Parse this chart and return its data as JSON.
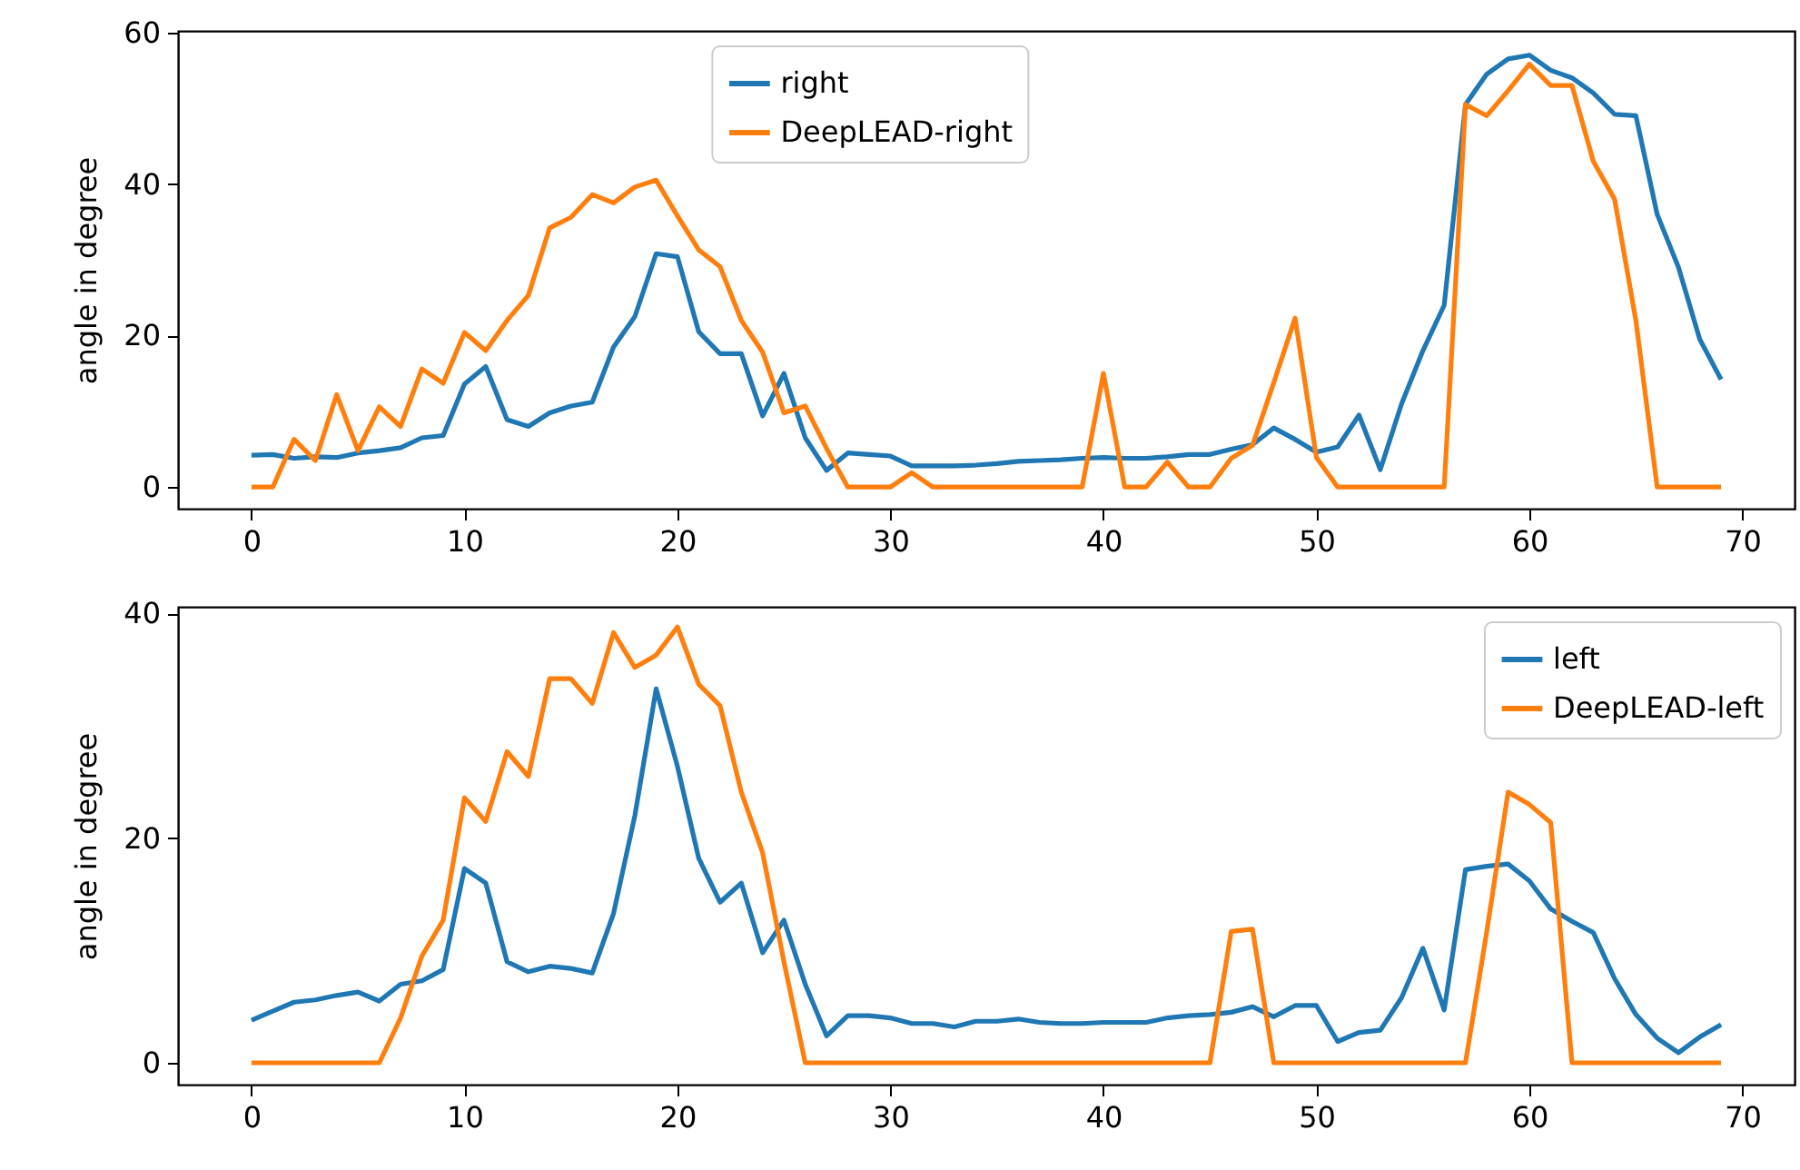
{
  "chart_data": [
    {
      "type": "line",
      "ylabel": "angle in degree",
      "legend": "top",
      "xlim": [
        -3.45,
        72.45
      ],
      "ylim": [
        -2.85,
        60.2
      ],
      "xticks": [
        0,
        10,
        20,
        30,
        40,
        50,
        60,
        70
      ],
      "yticks": [
        0,
        20,
        40,
        60
      ],
      "x": [
        0,
        1,
        2,
        3,
        4,
        5,
        6,
        7,
        8,
        9,
        10,
        11,
        12,
        13,
        14,
        15,
        16,
        17,
        18,
        19,
        20,
        21,
        22,
        23,
        24,
        25,
        26,
        27,
        28,
        29,
        30,
        31,
        32,
        33,
        34,
        35,
        36,
        37,
        38,
        39,
        40,
        41,
        42,
        43,
        44,
        45,
        46,
        47,
        48,
        49,
        50,
        51,
        52,
        53,
        54,
        55,
        56,
        57,
        58,
        59,
        60,
        61,
        62,
        63,
        64,
        65,
        66,
        67,
        68,
        69
      ],
      "series": [
        {
          "name": "right",
          "color": "#1f77b4",
          "values": [
            4.2,
            4.3,
            3.8,
            4.0,
            3.9,
            4.5,
            4.8,
            5.2,
            6.5,
            6.8,
            13.6,
            15.9,
            8.9,
            8.0,
            9.8,
            10.7,
            11.2,
            18.5,
            22.5,
            30.8,
            30.4,
            20.5,
            17.6,
            17.6,
            9.4,
            15.0,
            6.5,
            2.2,
            4.5,
            4.3,
            4.1,
            2.8,
            2.8,
            2.8,
            2.9,
            3.1,
            3.4,
            3.5,
            3.6,
            3.8,
            3.9,
            3.8,
            3.8,
            4.0,
            4.3,
            4.3,
            5.0,
            5.6,
            7.8,
            6.3,
            4.6,
            5.3,
            9.5,
            2.3,
            11.0,
            18.0,
            24.0,
            50.5,
            54.5,
            56.5,
            57.0,
            55.0,
            54.0,
            52.0,
            49.2,
            49.0,
            36.0,
            29.0,
            19.5,
            14.2
          ]
        },
        {
          "name": "DeepLEAD-right",
          "color": "#ff7f0e",
          "values": [
            0,
            0,
            6.3,
            3.5,
            12.2,
            4.8,
            10.6,
            8.0,
            15.6,
            13.7,
            20.4,
            18.0,
            22.0,
            25.3,
            34.2,
            35.6,
            38.6,
            37.5,
            39.6,
            40.5,
            35.8,
            31.3,
            29.1,
            22.0,
            17.8,
            9.8,
            10.7,
            5.1,
            0,
            0,
            0,
            1.9,
            0,
            0,
            0,
            0,
            0,
            0,
            0,
            0,
            15.0,
            0,
            0,
            3.3,
            0,
            0,
            3.8,
            5.5,
            13.8,
            22.3,
            3.9,
            0,
            0,
            0,
            0,
            0,
            0,
            50.5,
            49.0,
            52.3,
            55.8,
            53.0,
            53.0,
            43.0,
            38.0,
            22.0,
            0,
            0,
            0,
            0
          ]
        }
      ]
    },
    {
      "type": "line",
      "ylabel": "angle in degree",
      "legend": "top right",
      "xlim": [
        -3.45,
        72.45
      ],
      "ylim": [
        -1.94,
        40.6
      ],
      "xticks": [
        0,
        10,
        20,
        30,
        40,
        50,
        60,
        70
      ],
      "yticks": [
        0,
        20,
        40
      ],
      "x": [
        0,
        1,
        2,
        3,
        4,
        5,
        6,
        7,
        8,
        9,
        10,
        11,
        12,
        13,
        14,
        15,
        16,
        17,
        18,
        19,
        20,
        21,
        22,
        23,
        24,
        25,
        26,
        27,
        28,
        29,
        30,
        31,
        32,
        33,
        34,
        35,
        36,
        37,
        38,
        39,
        40,
        41,
        42,
        43,
        44,
        45,
        46,
        47,
        48,
        49,
        50,
        51,
        52,
        53,
        54,
        55,
        56,
        57,
        58,
        59,
        60,
        61,
        62,
        63,
        64,
        65,
        66,
        67,
        68,
        69
      ],
      "series": [
        {
          "name": "left",
          "color": "#1f77b4",
          "values": [
            3.8,
            4.6,
            5.4,
            5.6,
            6.0,
            6.3,
            5.5,
            7.0,
            7.3,
            8.3,
            17.3,
            16.0,
            9.0,
            8.1,
            8.6,
            8.4,
            8.0,
            13.3,
            22.0,
            33.3,
            26.4,
            18.2,
            14.3,
            16.0,
            9.8,
            12.7,
            7.0,
            2.4,
            4.2,
            4.2,
            4.0,
            3.5,
            3.5,
            3.2,
            3.7,
            3.7,
            3.9,
            3.6,
            3.5,
            3.5,
            3.6,
            3.6,
            3.6,
            4.0,
            4.2,
            4.3,
            4.5,
            5.0,
            4.1,
            5.1,
            5.1,
            1.9,
            2.7,
            2.9,
            5.8,
            10.2,
            4.7,
            17.2,
            17.5,
            17.7,
            16.2,
            13.7,
            12.6,
            11.6,
            7.5,
            4.3,
            2.2,
            0.9,
            2.3,
            3.4
          ]
        },
        {
          "name": "DeepLEAD-left",
          "color": "#ff7f0e",
          "values": [
            0,
            0,
            0,
            0,
            0,
            0,
            0,
            4.0,
            9.5,
            12.7,
            23.6,
            21.5,
            27.7,
            25.5,
            34.2,
            34.2,
            32.0,
            38.3,
            35.2,
            36.3,
            38.8,
            33.7,
            31.8,
            24.1,
            18.7,
            9.0,
            0,
            0,
            0,
            0,
            0,
            0,
            0,
            0,
            0,
            0,
            0,
            0,
            0,
            0,
            0,
            0,
            0,
            0,
            0,
            0,
            11.7,
            11.9,
            0,
            0,
            0,
            0,
            0,
            0,
            0,
            0,
            0,
            0,
            11.7,
            24.1,
            23.0,
            21.4,
            0,
            0,
            0,
            0,
            0,
            0,
            0,
            0
          ]
        }
      ]
    }
  ]
}
